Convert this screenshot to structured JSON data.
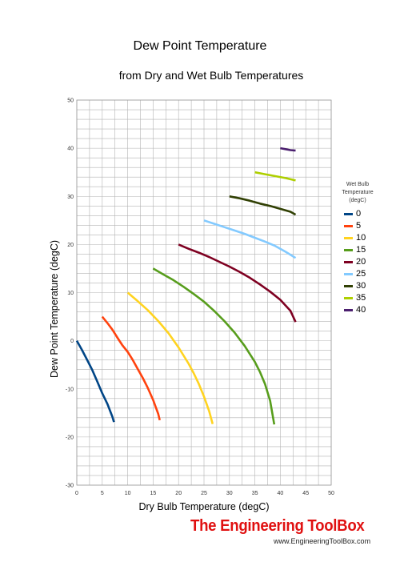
{
  "chart_data": {
    "type": "line",
    "title": "Dew Point Temperature",
    "subtitle": "from Dry and Wet Bulb Temperatures",
    "xlabel": "Dry Bulb Temperature (degC)",
    "ylabel": "Dew Point Temperature (degC)",
    "xlim": [
      0,
      50
    ],
    "ylim": [
      -30,
      50
    ],
    "xticks": [
      0,
      5,
      10,
      15,
      20,
      25,
      30,
      35,
      40,
      45,
      50
    ],
    "yticks": [
      -30,
      -20,
      -10,
      0,
      10,
      20,
      30,
      40,
      50
    ],
    "grid": true,
    "legend": {
      "title_line1": "Wet Bulb",
      "title_line2": "Temperature",
      "title_line3": "(degC)",
      "position": "right"
    },
    "series": [
      {
        "name": "0",
        "color": "#004586",
        "x": [
          0,
          1,
          2,
          3,
          4,
          5,
          6,
          7,
          7.3
        ],
        "y": [
          0,
          -1.9,
          -3.9,
          -6,
          -8.4,
          -10.9,
          -13.1,
          -15.8,
          -16.9
        ]
      },
      {
        "name": "5",
        "color": "#ff420e",
        "x": [
          5,
          6,
          7,
          8,
          9,
          10,
          11,
          12,
          13,
          14,
          15,
          16,
          16.3
        ],
        "y": [
          5,
          3.7,
          2.3,
          0.6,
          -1,
          -2.3,
          -4,
          -5.9,
          -7.8,
          -9.9,
          -12.3,
          -15.2,
          -16.5
        ]
      },
      {
        "name": "10",
        "color": "#ffd320",
        "x": [
          10,
          12,
          14,
          16,
          18,
          20,
          22,
          23,
          24,
          25,
          26,
          26.7
        ],
        "y": [
          10,
          8.2,
          6.3,
          4.1,
          1.6,
          -1.4,
          -4.8,
          -6.8,
          -9,
          -11.6,
          -14.6,
          -17.3
        ]
      },
      {
        "name": "15",
        "color": "#579d1c",
        "x": [
          15,
          17,
          19,
          21,
          23,
          25,
          27,
          29,
          31,
          33,
          35,
          36,
          37,
          38,
          38.8
        ],
        "y": [
          15,
          13.8,
          12.6,
          11.2,
          9.7,
          8.1,
          6.2,
          4.1,
          1.7,
          -1.1,
          -4.4,
          -6.5,
          -9,
          -12.5,
          -17.4
        ]
      },
      {
        "name": "20",
        "color": "#7e0021",
        "x": [
          20,
          22,
          24,
          26,
          28,
          30,
          32,
          34,
          36,
          38,
          40,
          42,
          43
        ],
        "y": [
          20,
          19.1,
          18.3,
          17.4,
          16.4,
          15.4,
          14.3,
          13.1,
          11.7,
          10.2,
          8.5,
          6.2,
          3.9
        ]
      },
      {
        "name": "25",
        "color": "#83caff",
        "x": [
          25,
          27,
          29,
          31,
          33,
          35,
          37,
          39,
          41,
          43
        ],
        "y": [
          25,
          24.3,
          23.6,
          22.9,
          22.2,
          21.4,
          20.6,
          19.7,
          18.5,
          17.2
        ]
      },
      {
        "name": "30",
        "color": "#314004",
        "x": [
          30,
          32,
          34,
          36,
          38,
          40,
          42,
          43
        ],
        "y": [
          30,
          29.6,
          29.1,
          28.5,
          28,
          27.4,
          26.8,
          26.2
        ]
      },
      {
        "name": "35",
        "color": "#aecf00",
        "x": [
          35,
          37,
          39,
          41,
          43
        ],
        "y": [
          35,
          34.6,
          34.2,
          33.8,
          33.3
        ]
      },
      {
        "name": "40",
        "color": "#4b1f6f",
        "x": [
          40,
          41,
          42,
          43
        ],
        "y": [
          40,
          39.8,
          39.6,
          39.5
        ]
      }
    ]
  },
  "branding": {
    "name": "The Engineering ToolBox",
    "url": "www.EngineeringToolBox.com"
  }
}
